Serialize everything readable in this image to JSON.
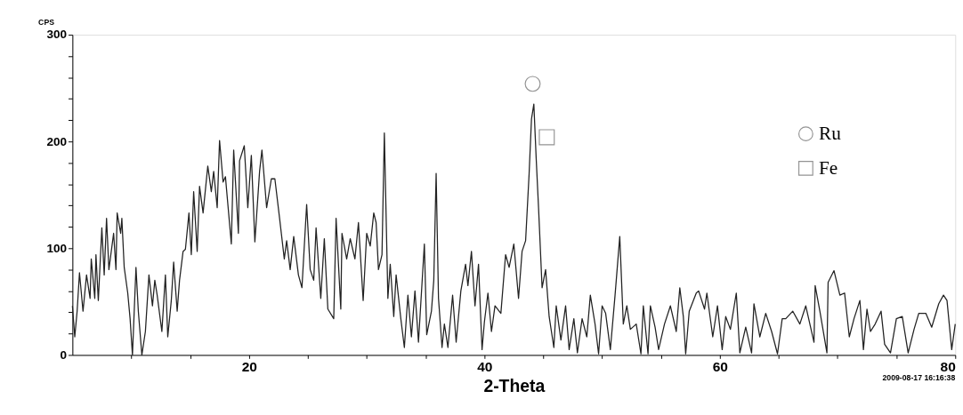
{
  "chart_data": {
    "type": "line",
    "xlabel": "2-Theta",
    "ylabel": "CPS",
    "xlim": [
      5,
      80
    ],
    "xticks": [
      {
        "value": 10,
        "label": null
      },
      {
        "value": 15,
        "label": null
      },
      20,
      {
        "value": 25,
        "label": null
      },
      {
        "value": 30,
        "label": null
      },
      {
        "value": 35,
        "label": null
      },
      40,
      {
        "value": 45,
        "label": null
      },
      {
        "value": 50,
        "label": null
      },
      {
        "value": 55,
        "label": null
      },
      60,
      {
        "value": 65,
        "label": null
      },
      {
        "value": 70,
        "label": null
      },
      {
        "value": 75,
        "label": null
      },
      80
    ],
    "ylim": [
      0,
      300
    ],
    "yticks": [
      0,
      {
        "value": 20,
        "label": null
      },
      {
        "value": 40,
        "label": null
      },
      {
        "value": 60,
        "label": null
      },
      {
        "value": 80,
        "label": null
      },
      100,
      {
        "value": 120,
        "label": null
      },
      {
        "value": 140,
        "label": null
      },
      {
        "value": 160,
        "label": null
      },
      {
        "value": 180,
        "label": null
      },
      200,
      {
        "value": 220,
        "label": null
      },
      {
        "value": 240,
        "label": null
      },
      {
        "value": 260,
        "label": null
      },
      {
        "value": 280,
        "label": null
      },
      300
    ],
    "grid": false,
    "legend": "top right",
    "annotations": [
      "2009-08-17 16:16:38"
    ],
    "series": [
      {
        "color": "#222222",
        "marker": "none",
        "x": [
          5.0,
          5.2,
          5.4,
          5.6,
          5.9,
          6.2,
          6.5,
          6.6,
          6.9,
          7.0,
          7.2,
          7.5,
          7.7,
          7.9,
          8.1,
          8.5,
          8.7,
          8.8,
          9.1,
          9.2,
          9.4,
          9.7,
          9.9,
          10.1,
          10.4,
          10.6,
          10.9,
          11.2,
          11.5,
          11.8,
          12.0,
          12.2,
          12.6,
          12.9,
          13.1,
          13.4,
          13.6,
          13.9,
          14.1,
          14.4,
          14.6,
          14.9,
          15.1,
          15.3,
          15.6,
          15.8,
          16.1,
          16.5,
          16.8,
          17.0,
          17.3,
          17.5,
          17.8,
          18.0,
          18.5,
          18.7,
          19.1,
          19.2,
          19.6,
          19.9,
          20.2,
          20.5,
          20.9,
          21.1,
          21.5,
          21.9,
          22.2,
          22.6,
          23.0,
          23.2,
          23.5,
          23.8,
          24.2,
          24.5,
          24.9,
          25.2,
          25.5,
          25.7,
          26.1,
          26.4,
          26.7,
          27.2,
          27.4,
          27.8,
          27.9,
          28.3,
          28.6,
          29.0,
          29.3,
          29.7,
          30.0,
          30.3,
          30.6,
          30.8,
          31.0,
          31.3,
          31.5,
          31.8,
          32.0,
          32.3,
          32.5,
          32.9,
          33.2,
          33.5,
          33.8,
          34.1,
          34.4,
          34.9,
          35.1,
          35.5,
          35.7,
          35.9,
          36.1,
          36.4,
          36.6,
          36.9,
          37.3,
          37.6,
          38.0,
          38.4,
          38.6,
          38.9,
          39.2,
          39.5,
          39.8,
          40.0,
          40.3,
          40.6,
          40.9,
          41.4,
          41.8,
          42.1,
          42.5,
          42.9,
          43.2,
          43.5,
          43.8,
          44.0,
          44.2,
          44.4,
          44.6,
          44.9,
          45.2,
          45.5,
          45.9,
          46.1,
          46.5,
          46.9,
          47.2,
          47.6,
          47.9,
          48.3,
          48.7,
          49.0,
          49.4,
          49.7,
          50.0,
          50.3,
          50.7,
          51.1,
          51.5,
          51.8,
          52.1,
          52.4,
          52.9,
          53.3,
          53.5,
          53.9,
          54.1,
          54.5,
          54.8,
          55.3,
          55.8,
          56.3,
          56.6,
          56.9,
          57.1,
          57.4,
          58.0,
          58.2,
          58.7,
          58.9,
          59.4,
          59.8,
          60.2,
          60.5,
          60.9,
          61.4,
          61.7,
          62.2,
          62.7,
          62.9,
          63.4,
          63.9,
          64.4,
          64.9,
          65.3,
          65.6,
          66.2,
          66.8,
          67.3,
          68.0,
          68.1,
          68.5,
          69.1,
          69.2,
          69.7,
          70.2,
          70.6,
          71.0,
          71.4,
          71.9,
          72.2,
          72.5,
          72.8,
          73.2,
          73.7,
          74.0,
          74.5,
          75.0,
          75.5,
          76.0,
          76.5,
          76.9,
          77.5,
          78.0,
          78.6,
          79.0,
          79.3,
          79.7,
          80.0
        ],
        "values": [
          46,
          17,
          41,
          77,
          41,
          75,
          53,
          90,
          53,
          94,
          51,
          119,
          75,
          128,
          80,
          114,
          80,
          133,
          114,
          128,
          82,
          58,
          34,
          0,
          82,
          41,
          0,
          22,
          75,
          46,
          70,
          56,
          22,
          75,
          17,
          51,
          87,
          41,
          70,
          97,
          99,
          133,
          94,
          153,
          97,
          158,
          133,
          177,
          153,
          172,
          138,
          201,
          162,
          167,
          104,
          192,
          114,
          182,
          196,
          138,
          187,
          106,
          172,
          192,
          138,
          165,
          165,
          128,
          90,
          107,
          80,
          111,
          75,
          63,
          141,
          80,
          70,
          119,
          53,
          109,
          43,
          34,
          128,
          43,
          114,
          90,
          109,
          90,
          124,
          51,
          114,
          102,
          133,
          124,
          80,
          94,
          208,
          53,
          85,
          36,
          75,
          34,
          7,
          56,
          17,
          60,
          12,
          104,
          19,
          41,
          70,
          170,
          53,
          7,
          29,
          7,
          56,
          12,
          60,
          85,
          65,
          97,
          46,
          85,
          5,
          31,
          58,
          22,
          46,
          39,
          94,
          82,
          104,
          53,
          97,
          107,
          170,
          221,
          235,
          184,
          138,
          63,
          80,
          36,
          7,
          46,
          14,
          46,
          5,
          34,
          2,
          34,
          17,
          56,
          29,
          1,
          46,
          39,
          5,
          56,
          111,
          29,
          46,
          24,
          29,
          1,
          46,
          1,
          46,
          26,
          5,
          29,
          46,
          22,
          63,
          36,
          1,
          41,
          58,
          60,
          43,
          58,
          17,
          46,
          5,
          36,
          24,
          58,
          2,
          26,
          2,
          48,
          17,
          39,
          22,
          1,
          34,
          34,
          41,
          29,
          46,
          12,
          65,
          41,
          2,
          68,
          79,
          56,
          58,
          17,
          34,
          51,
          5,
          43,
          22,
          29,
          41,
          10,
          2,
          34,
          36,
          2,
          24,
          39,
          39,
          26,
          48,
          56,
          51,
          5,
          29
        ]
      },
      {
        "type": "scatter",
        "name": "Ru",
        "color": "#666666",
        "marker": "circle",
        "x": [
          44.1
        ],
        "values": [
          254
        ]
      },
      {
        "type": "scatter",
        "name": "Fe",
        "color": "#666666",
        "marker": "square",
        "x": [
          45.3
        ],
        "values": [
          204
        ]
      }
    ]
  }
}
